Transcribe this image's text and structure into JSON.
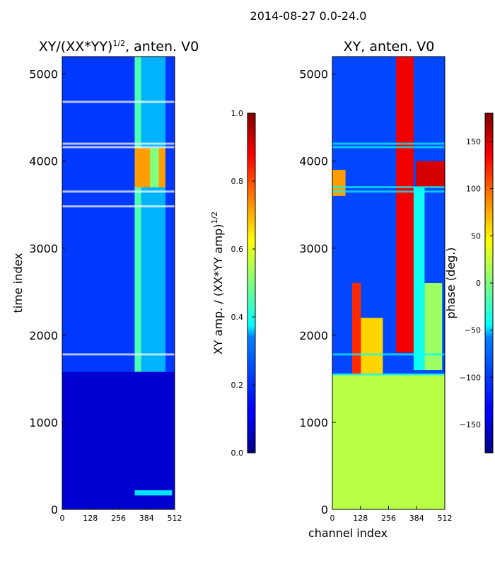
{
  "figure": {
    "suptitle": "2014-08-27 0.0-24.0"
  },
  "chart_data": [
    {
      "type": "heatmap",
      "title": "XY/(XX*YY)^1/2, anten. V0",
      "title_main": "XY/(XX*YY)",
      "title_exp": "1/2",
      "title_tail": ", anten. V0",
      "xlabel": "",
      "ylabel": "time index",
      "xlim": [
        0,
        512
      ],
      "ylim": [
        0,
        5200
      ],
      "x_ticks": [
        0,
        128,
        256,
        384,
        512
      ],
      "y_ticks": [
        0,
        1000,
        2000,
        3000,
        4000,
        5000
      ],
      "colorbar": {
        "label": "XY amp. / (XX*YY amp)^1/2",
        "label_main": "XY amp. / (XX*YY amp)",
        "label_exp": "1/2",
        "range": [
          0.0,
          1.0
        ],
        "ticks": [
          0.0,
          0.2,
          0.4,
          0.6,
          0.8,
          1.0
        ],
        "tick_labels": [
          "0.0",
          "0.2",
          "0.4",
          "0.6",
          "0.8",
          "1.0"
        ]
      },
      "regions": [
        {
          "x": [
            0,
            512
          ],
          "y": [
            0,
            1580
          ],
          "value": 0.08
        },
        {
          "x": [
            0,
            512
          ],
          "y": [
            1580,
            5200
          ],
          "value": 0.18
        },
        {
          "x": [
            330,
            360
          ],
          "y": [
            1580,
            5200
          ],
          "value": 0.45
        },
        {
          "x": [
            360,
            470
          ],
          "y": [
            1580,
            5200
          ],
          "value": 0.3
        },
        {
          "x": [
            330,
            470
          ],
          "y": [
            3700,
            4150
          ],
          "value": 0.72
        },
        {
          "x": [
            400,
            440
          ],
          "y": [
            3700,
            4150
          ],
          "value": 0.5
        },
        {
          "x": [
            330,
            500
          ],
          "y": [
            160,
            220
          ],
          "value": 0.35
        }
      ],
      "flag_rows": [
        1780,
        3650,
        3480,
        4160,
        4200,
        4680
      ]
    },
    {
      "type": "heatmap",
      "title": "XY, anten. V0",
      "xlabel": "channel index",
      "ylabel": "",
      "xlim": [
        0,
        512
      ],
      "ylim": [
        0,
        5200
      ],
      "x_ticks": [
        0,
        128,
        256,
        384,
        512
      ],
      "y_ticks": [
        0,
        1000,
        2000,
        3000,
        4000,
        5000
      ],
      "colorbar": {
        "label": "phase (deg.)",
        "range": [
          -180,
          180
        ],
        "ticks": [
          -150,
          -100,
          -50,
          0,
          50,
          100,
          150
        ],
        "tick_labels": [
          "−150",
          "−100",
          "−50",
          "0",
          "50",
          "100",
          "150"
        ]
      },
      "regions": [
        {
          "x": [
            0,
            512
          ],
          "y": [
            0,
            1550
          ],
          "value": 20
        },
        {
          "x": [
            0,
            512
          ],
          "y": [
            1550,
            5200
          ],
          "value": -110
        },
        {
          "x": [
            90,
            130
          ],
          "y": [
            1550,
            2600
          ],
          "value": 120
        },
        {
          "x": [
            130,
            230
          ],
          "y": [
            1550,
            2200
          ],
          "value": 60
        },
        {
          "x": [
            290,
            370
          ],
          "y": [
            1800,
            5200
          ],
          "value": 140
        },
        {
          "x": [
            370,
            420
          ],
          "y": [
            1600,
            3700
          ],
          "value": -40
        },
        {
          "x": [
            420,
            500
          ],
          "y": [
            1600,
            2600
          ],
          "value": 10
        },
        {
          "x": [
            0,
            60
          ],
          "y": [
            3600,
            3900
          ],
          "value": 80
        },
        {
          "x": [
            380,
            512
          ],
          "y": [
            3700,
            4000
          ],
          "value": 150
        }
      ],
      "flag_rows": [
        1780,
        3650,
        3700,
        4160,
        4200,
        1550
      ]
    }
  ]
}
